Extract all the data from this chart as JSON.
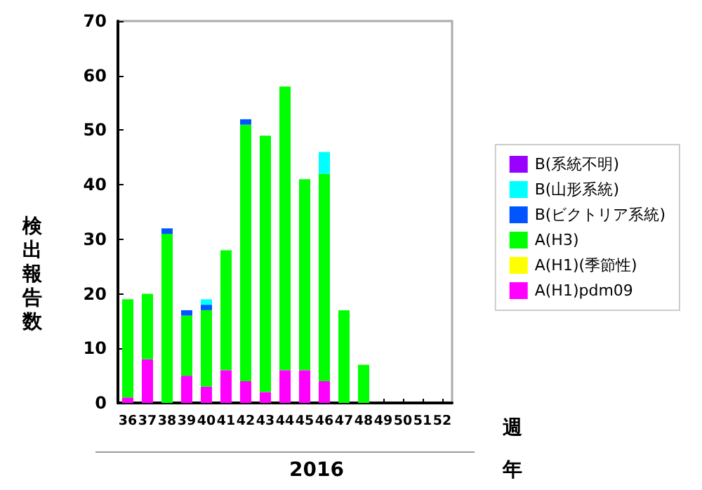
{
  "chart_data": {
    "type": "bar",
    "stacked": true,
    "ylabel": "検出報告数",
    "xlabel": "2016",
    "annotations": [
      "週",
      "年"
    ],
    "categories": [
      "36",
      "37",
      "38",
      "39",
      "40",
      "41",
      "42",
      "43",
      "44",
      "45",
      "46",
      "47",
      "48",
      "49",
      "50",
      "51",
      "52"
    ],
    "series": [
      {
        "name": "A(H1)pdm09",
        "color": "#ff00ff",
        "values": [
          1,
          8,
          0,
          5,
          3,
          6,
          4,
          2,
          6,
          6,
          4,
          0,
          0,
          0,
          0,
          0,
          0
        ]
      },
      {
        "name": "A(H1)(季節性)",
        "color": "#ffff00",
        "values": [
          0,
          0,
          0,
          0,
          0,
          0,
          0,
          0,
          0,
          0,
          0,
          0,
          0,
          0,
          0,
          0,
          0
        ]
      },
      {
        "name": "A(H3)",
        "color": "#00ff00",
        "values": [
          18,
          12,
          31,
          11,
          14,
          22,
          47,
          47,
          52,
          35,
          38,
          17,
          7,
          0,
          0,
          0,
          0
        ]
      },
      {
        "name": "B(ビクトリア系統)",
        "color": "#0055ff",
        "values": [
          0,
          0,
          1,
          1,
          1,
          0,
          1,
          0,
          0,
          0,
          0,
          0,
          0,
          0,
          0,
          0,
          0
        ]
      },
      {
        "name": "B(山形系統)",
        "color": "#00ffff",
        "values": [
          0,
          0,
          0,
          0,
          1,
          0,
          0,
          0,
          0,
          0,
          4,
          0,
          0,
          0,
          0,
          0,
          0
        ]
      },
      {
        "name": "B(系統不明)",
        "color": "#9900ff",
        "values": [
          0,
          0,
          0,
          0,
          0,
          0,
          0,
          0,
          0,
          0,
          0,
          0,
          0,
          0,
          0,
          0,
          0
        ]
      }
    ],
    "ylim": [
      0,
      70
    ],
    "yticks": [
      0,
      10,
      20,
      30,
      40,
      50,
      60,
      70
    ],
    "grid": false,
    "legend": "right"
  }
}
